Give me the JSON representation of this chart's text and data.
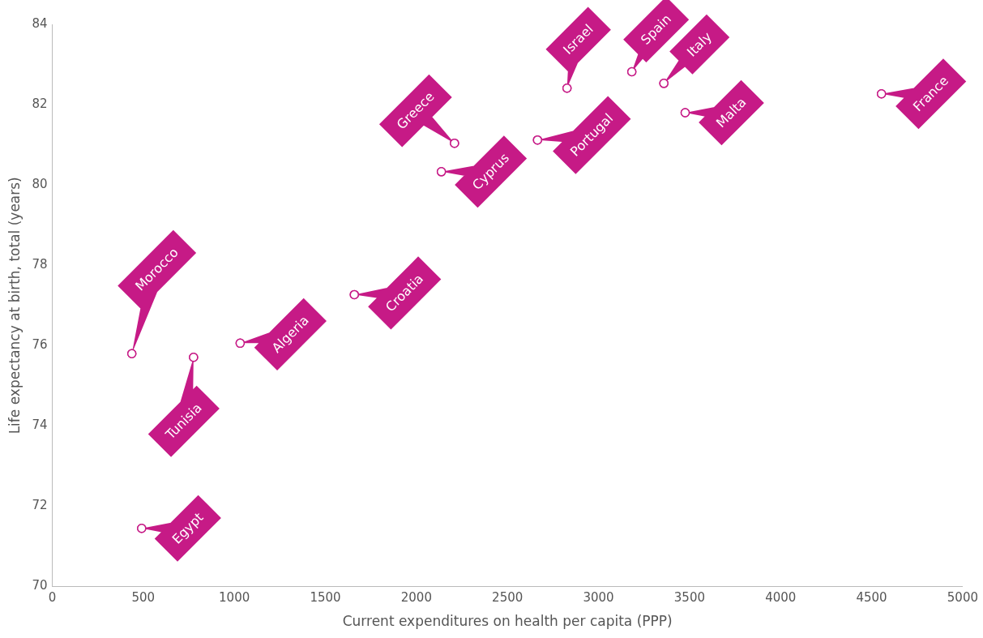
{
  "chart_data": {
    "type": "scatter",
    "xlabel": "Current expenditures on health per capita (PPP)",
    "ylabel": "Life expectancy at birth, total (years)",
    "x": [
      437,
      491,
      776,
      1032,
      1659,
      2137,
      2209,
      2665,
      2827,
      3183,
      3359,
      3476,
      4554
    ],
    "values": [
      75.8,
      71.45,
      75.71,
      76.06,
      77.27,
      80.33,
      81.04,
      81.12,
      82.41,
      82.82,
      82.53,
      81.8,
      82.27
    ],
    "color": "#c61a86",
    "marker": "circle",
    "grid": false,
    "legend": false,
    "xlim": [
      0,
      5000
    ],
    "xticks": [
      0,
      500,
      1000,
      1500,
      2000,
      2500,
      3000,
      3500,
      4000,
      4500,
      5000
    ],
    "ylim": [
      70,
      84
    ],
    "yticks": [
      70,
      72,
      74,
      76,
      78,
      80,
      82,
      84
    ],
    "annotations": [
      {
        "text": "Morocco",
        "x": 437,
        "y": 75.8
      },
      {
        "text": "Egypt",
        "x": 491,
        "y": 71.45
      },
      {
        "text": "Tunisia",
        "x": 776,
        "y": 75.71
      },
      {
        "text": "Algeria",
        "x": 1032,
        "y": 76.06
      },
      {
        "text": "Croatia",
        "x": 1659,
        "y": 77.27
      },
      {
        "text": "Cyprus",
        "x": 2137,
        "y": 80.33
      },
      {
        "text": "Greece",
        "x": 2209,
        "y": 81.04
      },
      {
        "text": "Portugal",
        "x": 2665,
        "y": 81.12
      },
      {
        "text": "Israel",
        "x": 2827,
        "y": 82.41
      },
      {
        "text": "Spain",
        "x": 3183,
        "y": 82.82
      },
      {
        "text": "Italy",
        "x": 3359,
        "y": 82.53
      },
      {
        "text": "Malta",
        "x": 3476,
        "y": 81.8
      },
      {
        "text": "France",
        "x": 4554,
        "y": 82.27
      }
    ]
  }
}
